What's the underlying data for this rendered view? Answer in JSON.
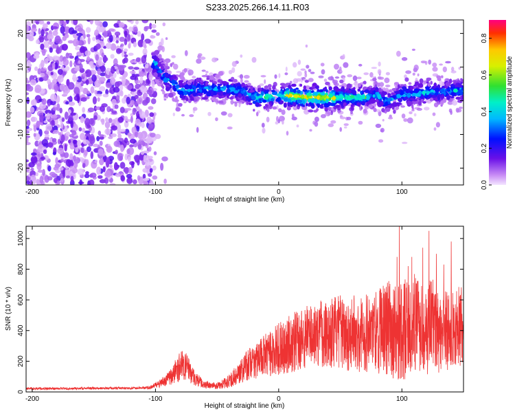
{
  "title": "S233.2025.266.14.11.R03",
  "chart_data": [
    {
      "type": "heatmap",
      "xlabel": "Height of straight line (km)",
      "ylabel": "Frequency (Hz)",
      "xlim": [
        -205,
        150
      ],
      "ylim": [
        -25,
        24
      ],
      "xticks": [
        -200,
        -100,
        0,
        100
      ],
      "yticks": [
        -20,
        -10,
        0,
        10,
        20
      ],
      "colorbar": {
        "label": "Normalized spectral amplitude",
        "range": [
          0.0,
          0.9
        ],
        "ticks": [
          "0.0",
          "0.2",
          "0.4",
          "0.6",
          "0.8"
        ],
        "tick_values": [
          0.0,
          0.2,
          0.4,
          0.6,
          0.8
        ]
      },
      "ridge_center_hz": [
        [
          -100,
          11
        ],
        [
          -95,
          8
        ],
        [
          -90,
          6
        ],
        [
          -85,
          5
        ],
        [
          -80,
          3
        ],
        [
          -75,
          3
        ],
        [
          -65,
          3.5
        ],
        [
          -55,
          3.5
        ],
        [
          -40,
          3.5
        ],
        [
          -30,
          3
        ],
        [
          -20,
          1
        ],
        [
          -10,
          1
        ],
        [
          0,
          1.5
        ],
        [
          10,
          1.5
        ],
        [
          20,
          1
        ],
        [
          30,
          1
        ],
        [
          40,
          1
        ],
        [
          50,
          1
        ],
        [
          60,
          1
        ],
        [
          70,
          1
        ],
        [
          80,
          2
        ],
        [
          85,
          0
        ],
        [
          90,
          0
        ],
        [
          100,
          2
        ],
        [
          110,
          2
        ],
        [
          120,
          2.5
        ],
        [
          130,
          2.5
        ],
        [
          140,
          3
        ],
        [
          150,
          3
        ]
      ],
      "peak_amplitude_region_km": [
        5,
        45
      ]
    },
    {
      "type": "line",
      "xlabel": "Height of straight line (km)",
      "ylabel": "SNR (10 * v/v)",
      "xlim": [
        -205,
        150
      ],
      "ylim": [
        0,
        1080
      ],
      "xticks": [
        -200,
        -100,
        0,
        100
      ],
      "yticks": [
        0,
        200,
        400,
        600,
        800,
        1000
      ],
      "color": "#ee3333",
      "series": [
        {
          "name": "SNR",
          "x": [
            -205,
            -180,
            -150,
            -120,
            -105,
            -95,
            -88,
            -82,
            -77,
            -72,
            -68,
            -62,
            -55,
            -48,
            -40,
            -33,
            -28,
            -22,
            -15,
            -8,
            0,
            8,
            15,
            22,
            30,
            40,
            50,
            60,
            70,
            80,
            90,
            95,
            100,
            105,
            110,
            115,
            120,
            125,
            130,
            140,
            150
          ],
          "values": [
            22,
            22,
            24,
            25,
            28,
            60,
            95,
            150,
            180,
            140,
            90,
            55,
            40,
            42,
            70,
            120,
            160,
            190,
            220,
            250,
            280,
            310,
            330,
            360,
            380,
            390,
            390,
            380,
            390,
            400,
            420,
            380,
            400,
            420,
            450,
            430,
            410,
            440,
            400,
            420,
            430
          ],
          "spread": [
            8,
            8,
            8,
            8,
            10,
            30,
            50,
            90,
            100,
            80,
            50,
            30,
            20,
            25,
            45,
            70,
            90,
            110,
            130,
            150,
            170,
            190,
            200,
            210,
            220,
            230,
            240,
            250,
            260,
            280,
            320,
            330,
            330,
            330,
            320,
            310,
            300,
            300,
            280,
            270,
            260
          ]
        }
      ],
      "peaks": [
        [
          98,
          1080
        ],
        [
          96,
          880
        ],
        [
          122,
          1050
        ],
        [
          128,
          900
        ],
        [
          140,
          980
        ],
        [
          105,
          820
        ],
        [
          117,
          940
        ],
        [
          108,
          880
        ],
        [
          134,
          830
        ]
      ]
    }
  ]
}
